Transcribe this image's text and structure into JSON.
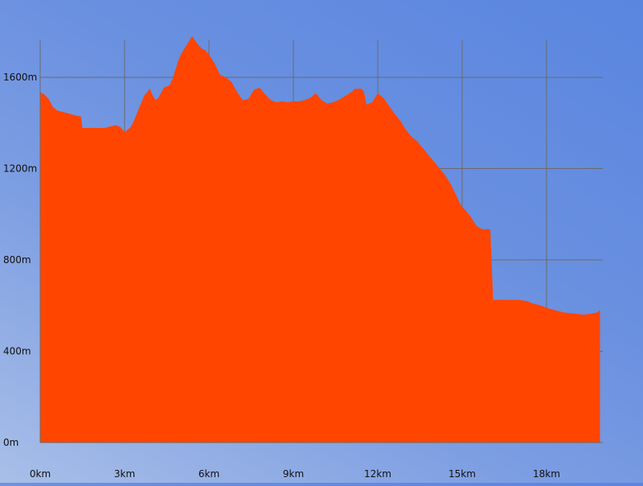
{
  "chart_data": {
    "type": "area",
    "title": "",
    "xlabel": "",
    "ylabel": "",
    "x_unit": "km",
    "y_unit": "m",
    "xlim": [
      0,
      20
    ],
    "ylim": [
      0,
      1780
    ],
    "x_ticks": [
      0,
      3,
      6,
      9,
      12,
      15,
      18
    ],
    "y_ticks": [
      0,
      400,
      800,
      1200,
      1600
    ],
    "x_tick_labels": [
      "0km",
      "3km",
      "6km",
      "9km",
      "12km",
      "15km",
      "18km"
    ],
    "y_tick_labels": [
      "0m",
      "400m",
      "800m",
      "1200m",
      "1600m"
    ],
    "grid": true,
    "legend": "none",
    "fill_color": "#ff4500",
    "grid_color": "#6b6b6b",
    "series": [
      {
        "x": [
          0,
          0.15,
          0.3,
          0.45,
          0.6,
          0.8,
          1.0,
          1.2,
          1.3,
          1.45,
          1.5,
          2.0,
          2.3,
          2.5,
          2.7,
          2.85,
          3.0,
          3.2,
          3.3,
          3.5,
          3.7,
          3.9,
          4.0,
          4.1,
          4.2,
          4.4,
          4.5,
          4.6,
          4.7,
          4.9,
          5.0,
          5.2,
          5.4,
          5.6,
          5.75,
          5.85,
          6.0,
          6.2,
          6.4,
          6.6,
          6.8,
          7.0,
          7.2,
          7.4,
          7.6,
          7.8,
          8.0,
          8.2,
          8.4,
          8.6,
          8.8,
          9.0,
          9.2,
          9.4,
          9.6,
          9.8,
          10.0,
          10.2,
          10.4,
          10.6,
          10.8,
          11.0,
          11.2,
          11.4,
          11.5,
          11.6,
          11.8,
          12.0,
          12.2,
          12.4,
          12.6,
          12.8,
          13.0,
          13.2,
          13.4,
          13.6,
          13.8,
          14.0,
          14.2,
          14.4,
          14.6,
          14.8,
          14.95,
          15.1,
          15.3,
          15.5,
          15.7,
          15.9,
          16.0,
          16.1,
          16.2,
          16.5,
          17.0,
          17.3,
          17.5,
          17.8,
          18.0,
          18.3,
          18.6,
          19.0,
          19.3,
          19.6,
          19.8,
          19.9
        ],
        "y": [
          1535,
          1525,
          1505,
          1470,
          1455,
          1448,
          1442,
          1435,
          1432,
          1428,
          1378,
          1378,
          1378,
          1385,
          1390,
          1382,
          1360,
          1380,
          1400,
          1460,
          1520,
          1550,
          1520,
          1500,
          1510,
          1555,
          1560,
          1565,
          1590,
          1670,
          1700,
          1740,
          1780,
          1745,
          1725,
          1720,
          1700,
          1660,
          1610,
          1600,
          1580,
          1535,
          1500,
          1505,
          1545,
          1555,
          1525,
          1500,
          1490,
          1495,
          1490,
          1495,
          1495,
          1500,
          1510,
          1530,
          1500,
          1485,
          1490,
          1500,
          1515,
          1530,
          1550,
          1550,
          1540,
          1480,
          1490,
          1530,
          1510,
          1475,
          1440,
          1410,
          1370,
          1340,
          1320,
          1290,
          1260,
          1230,
          1200,
          1170,
          1130,
          1080,
          1040,
          1020,
          990,
          950,
          935,
          935,
          935,
          625,
          625,
          625,
          625,
          620,
          610,
          600,
          590,
          580,
          570,
          565,
          560,
          565,
          570,
          580
        ]
      }
    ]
  }
}
